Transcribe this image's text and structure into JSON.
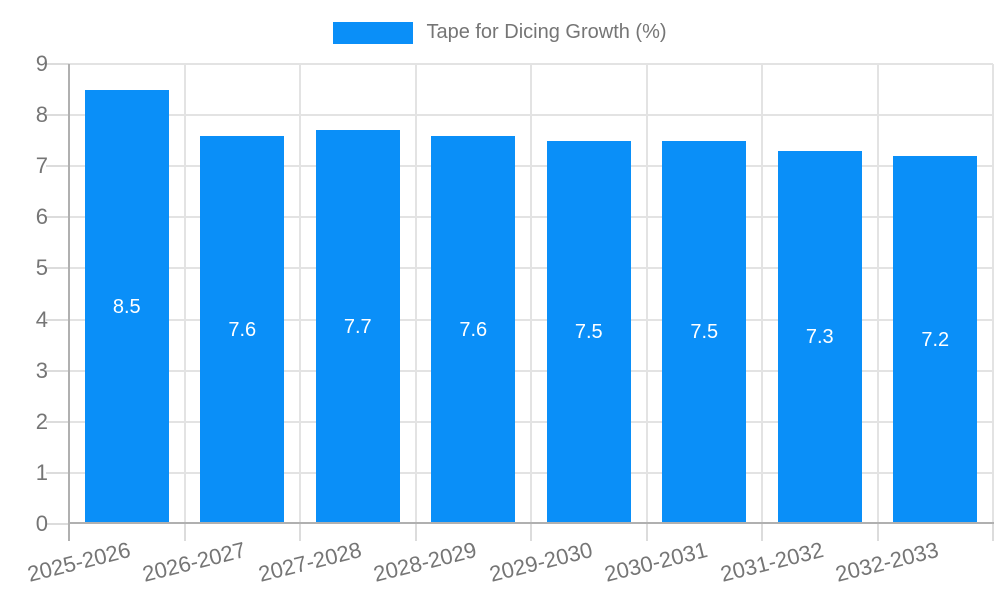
{
  "legend": {
    "label": "Tape for Dicing Growth (%)"
  },
  "chart_data": {
    "type": "bar",
    "title": "Tape for Dicing Growth (%)",
    "categories": [
      "2025-2026",
      "2026-2027",
      "2027-2028",
      "2028-2029",
      "2029-2030",
      "2030-2031",
      "2031-2032",
      "2032-2033"
    ],
    "values": [
      8.5,
      7.6,
      7.7,
      7.6,
      7.5,
      7.5,
      7.3,
      7.2
    ],
    "value_labels": [
      "8.5",
      "7.6",
      "7.7",
      "7.6",
      "7.5",
      "7.5",
      "7.3",
      "7.2"
    ],
    "ytick_labels": [
      "0",
      "1",
      "2",
      "3",
      "4",
      "5",
      "6",
      "7",
      "8",
      "9"
    ],
    "ylim": [
      0,
      9
    ],
    "ytick_step": 1,
    "grid": true,
    "legend_position": "top-center",
    "bar_color": "#0a8ff8",
    "value_label_color": "#ffffff",
    "axis_label_color": "#757575",
    "grid_color": "#e3e3e3",
    "tick_color": "#dcdcdc",
    "axis_line_color": "#b0b0b0"
  }
}
